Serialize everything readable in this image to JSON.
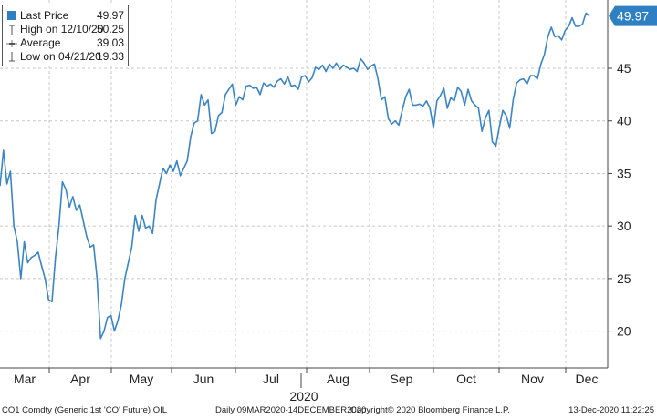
{
  "legend": {
    "last_price_label": "Last Price",
    "last_price_value": "49.97",
    "high_label": "High on 12/10/20",
    "high_value": "50.25",
    "average_label": "Average",
    "average_value": "39.03",
    "low_label": "Low on 04/21/20",
    "low_value": "19.33"
  },
  "footer": {
    "ticker": "CO1 Comdty (Generic 1st 'CO' Future) OIL",
    "range": "Daily 09MAR2020-14DECEMBER2020",
    "copyright": "Copyright© 2020 Bloomberg Finance L.P.",
    "timestamp": "13-Dec-2020 11:22:25"
  },
  "colors": {
    "series": "#3a85c8",
    "label_fill": "#2f7fc4"
  },
  "chart_data": {
    "type": "line",
    "year_label": "2020",
    "x_month_labels": [
      "Mar",
      "Apr",
      "May",
      "Jun",
      "Jul",
      "Aug",
      "Sep",
      "Oct",
      "Nov",
      "Dec"
    ],
    "y_ticks": [
      20,
      25,
      30,
      35,
      40,
      45
    ],
    "ylim": [
      16.5,
      51.5
    ],
    "last_value_label": "49.97",
    "grid": true,
    "legend_position": "top-left",
    "series": [
      {
        "values": [
          33.8,
          37.2,
          34.0,
          35.2,
          30.0,
          28.5,
          25.0,
          28.5,
          26.5,
          27.0,
          27.2,
          27.5,
          26.2,
          25.0,
          23.0,
          22.8,
          27.0,
          30.0,
          34.2,
          33.5,
          31.8,
          32.8,
          31.5,
          32.0,
          30.5,
          29.0,
          28.0,
          28.2,
          25.0,
          19.3,
          20.0,
          21.3,
          21.5,
          20.0,
          21.0,
          22.5,
          25.0,
          26.5,
          28.0,
          31.0,
          29.5,
          31.0,
          29.8,
          30.0,
          29.3,
          32.5,
          34.0,
          35.5,
          35.0,
          35.8,
          35.2,
          36.2,
          34.8,
          35.5,
          36.2,
          38.5,
          39.8,
          40.0,
          42.5,
          41.5,
          42.0,
          38.8,
          39.0,
          40.5,
          40.8,
          42.5,
          43.0,
          43.5,
          41.5,
          42.3,
          42.0,
          43.3,
          43.4,
          43.1,
          43.2,
          42.5,
          43.6,
          43.3,
          43.5,
          43.2,
          43.8,
          44.0,
          43.5,
          44.2,
          43.3,
          43.4,
          43.0,
          44.2,
          44.3,
          43.7,
          44.1,
          45.1,
          44.9,
          45.3,
          44.7,
          45.4,
          45.0,
          45.5,
          44.9,
          45.3,
          45.1,
          44.9,
          45.0,
          44.7,
          45.9,
          45.5,
          44.9,
          45.2,
          45.4,
          44.0,
          42.0,
          42.3,
          40.2,
          39.7,
          40.0,
          39.6,
          41.0,
          42.3,
          43.0,
          41.5,
          41.5,
          41.6,
          41.4,
          41.9,
          41.2,
          39.3,
          41.9,
          42.4,
          43.1,
          41.2,
          42.2,
          41.9,
          43.2,
          42.8,
          41.5,
          43.0,
          41.9,
          41.5,
          41.2,
          39.0,
          40.3,
          41.0,
          38.0,
          37.6,
          39.4,
          41.0,
          40.5,
          39.3,
          42.0,
          43.6,
          43.9,
          44.0,
          43.5,
          44.3,
          44.3,
          44.0,
          45.4,
          46.3,
          48.0,
          48.9,
          48.0,
          48.1,
          47.7,
          48.6,
          49.0,
          49.8,
          49.0,
          49.0,
          49.2,
          50.25,
          49.97
        ]
      }
    ]
  }
}
